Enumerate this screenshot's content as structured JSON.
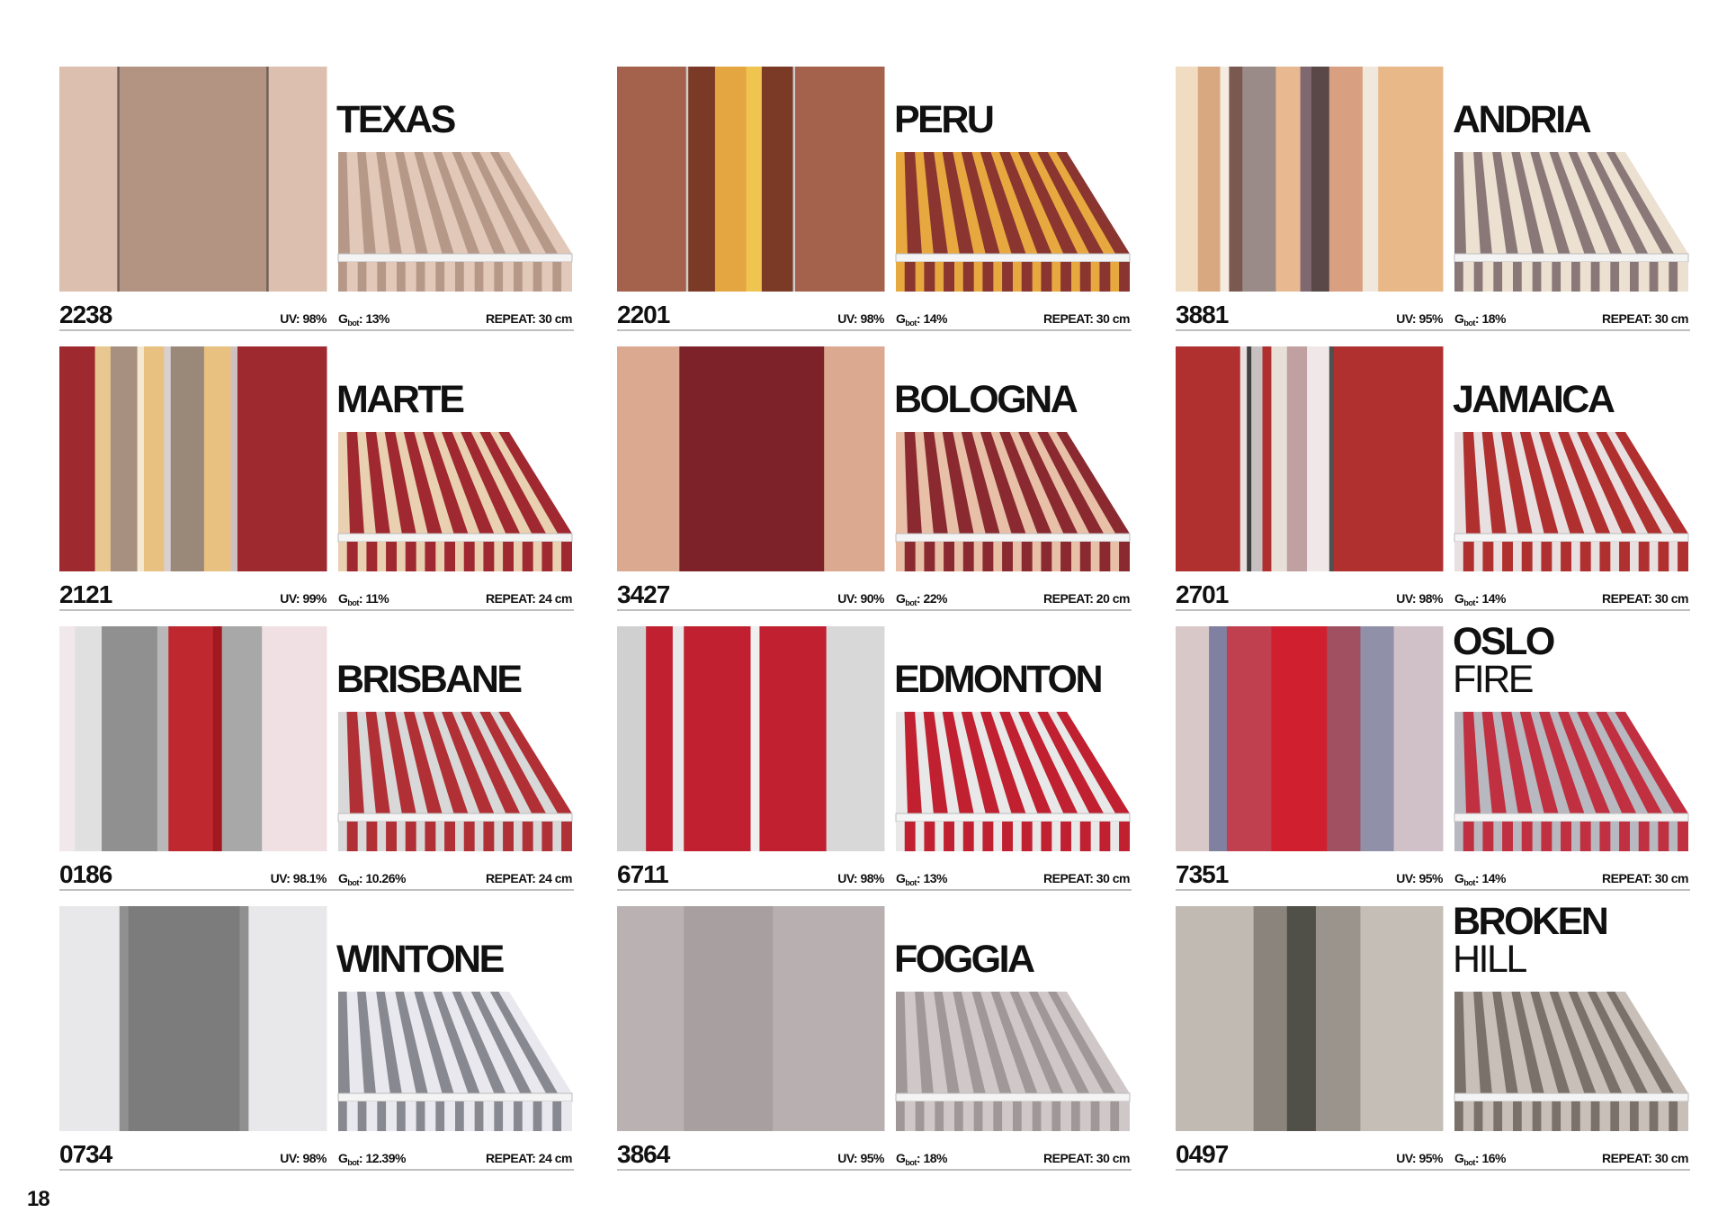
{
  "items": [
    {
      "code": "2238",
      "name": [
        "TEXAS"
      ],
      "uv": "UV: 98%",
      "gbot": {
        "symbol": "G",
        "sub": "bot",
        "value": ": 13%"
      },
      "repeat": "REPEAT: 30 cm"
    },
    {
      "code": "2201",
      "name": [
        "PERU"
      ],
      "uv": "UV: 98%",
      "gbot": {
        "symbol": "G",
        "sub": "bot",
        "value": ": 14%"
      },
      "repeat": "REPEAT: 30 cm"
    },
    {
      "code": "3881",
      "name": [
        "ANDRIA"
      ],
      "uv": "UV: 95%",
      "gbot": {
        "symbol": "G",
        "sub": "bot",
        "value": ": 18%"
      },
      "repeat": "REPEAT: 30 cm"
    },
    {
      "code": "2121",
      "name": [
        "MARTE"
      ],
      "uv": "UV: 99%",
      "gbot": {
        "symbol": "G",
        "sub": "bot",
        "value": ": 11%"
      },
      "repeat": "REPEAT: 24 cm"
    },
    {
      "code": "3427",
      "name": [
        "BOLOGNA"
      ],
      "uv": "UV: 90%",
      "gbot": {
        "symbol": "G",
        "sub": "bot",
        "value": ": 22%"
      },
      "repeat": "REPEAT: 20 cm"
    },
    {
      "code": "2701",
      "name": [
        "JAMAICA"
      ],
      "uv": "UV: 98%",
      "gbot": {
        "symbol": "G",
        "sub": "bot",
        "value": ": 14%"
      },
      "repeat": "REPEAT: 30 cm"
    },
    {
      "code": "0186",
      "name": [
        "BRISBANE"
      ],
      "uv": "UV: 98.1%",
      "gbot": {
        "symbol": "G",
        "sub": "bot",
        "value": ": 10.26%"
      },
      "repeat": "REPEAT: 24 cm"
    },
    {
      "code": "6711",
      "name": [
        "EDMONTON"
      ],
      "uv": "UV: 98%",
      "gbot": {
        "symbol": "G",
        "sub": "bot",
        "value": ": 13%"
      },
      "repeat": "REPEAT: 30 cm"
    },
    {
      "code": "7351",
      "name": [
        "OSLO",
        "FIRE"
      ],
      "uv": "UV: 95%",
      "gbot": {
        "symbol": "G",
        "sub": "bot",
        "value": ": 14%"
      },
      "repeat": "REPEAT: 30 cm"
    },
    {
      "code": "0734",
      "name": [
        "WINTONE"
      ],
      "uv": "UV: 98%",
      "gbot": {
        "symbol": "G",
        "sub": "bot",
        "value": ": 12.39%"
      },
      "repeat": "REPEAT: 24 cm"
    },
    {
      "code": "3864",
      "name": [
        "FOGGIA"
      ],
      "uv": "UV: 95%",
      "gbot": {
        "symbol": "G",
        "sub": "bot",
        "value": ": 18%"
      },
      "repeat": "REPEAT: 30 cm"
    },
    {
      "code": "0497",
      "name": [
        "BROKEN",
        "HILL"
      ],
      "uv": "UV: 95%",
      "gbot": {
        "symbol": "G",
        "sub": "bot",
        "value": ": 16%"
      },
      "repeat": "REPEAT: 30 cm"
    }
  ],
  "page_number": "18"
}
